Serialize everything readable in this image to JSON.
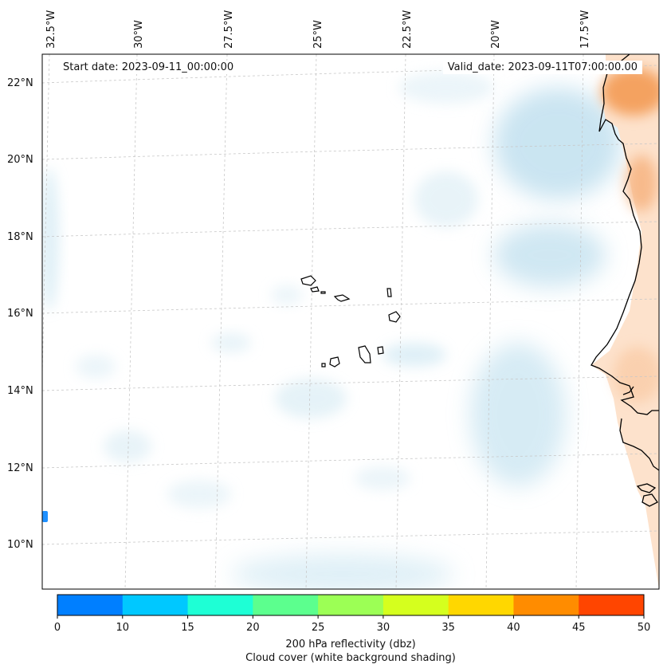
{
  "header": {
    "start_date": "Start date: 2023-09-11_00:00:00",
    "valid_date": "Valid_date: 2023-09-11T07:00:00.00"
  },
  "map": {
    "lon_labels": [
      "32.5°W",
      "30°W",
      "27.5°W",
      "25°W",
      "22.5°W",
      "20°W",
      "17.5°W"
    ],
    "lat_labels": [
      "22°N",
      "20°N",
      "18°N",
      "16°N",
      "14°N",
      "12°N",
      "10°N"
    ],
    "colors": {
      "coast": "#000000",
      "grid": "#c8c8c8",
      "cloud": "#d6eaf3",
      "land_warm": "#f4a261",
      "land_light": "#fde2cc",
      "blue_blob": "#1e90ff"
    }
  },
  "colorbar": {
    "ticks": [
      "0",
      "10",
      "15",
      "20",
      "25",
      "30",
      "35",
      "40",
      "45",
      "50"
    ],
    "colors": [
      "#007fff",
      "#00c8ff",
      "#1effd5",
      "#5cff8e",
      "#9cff55",
      "#d5ff1e",
      "#ffd700",
      "#ff8c00",
      "#ff4500"
    ],
    "label_line1": "200 hPa reflectivity (dbz)",
    "label_line2": "Cloud cover (white background shading)"
  }
}
